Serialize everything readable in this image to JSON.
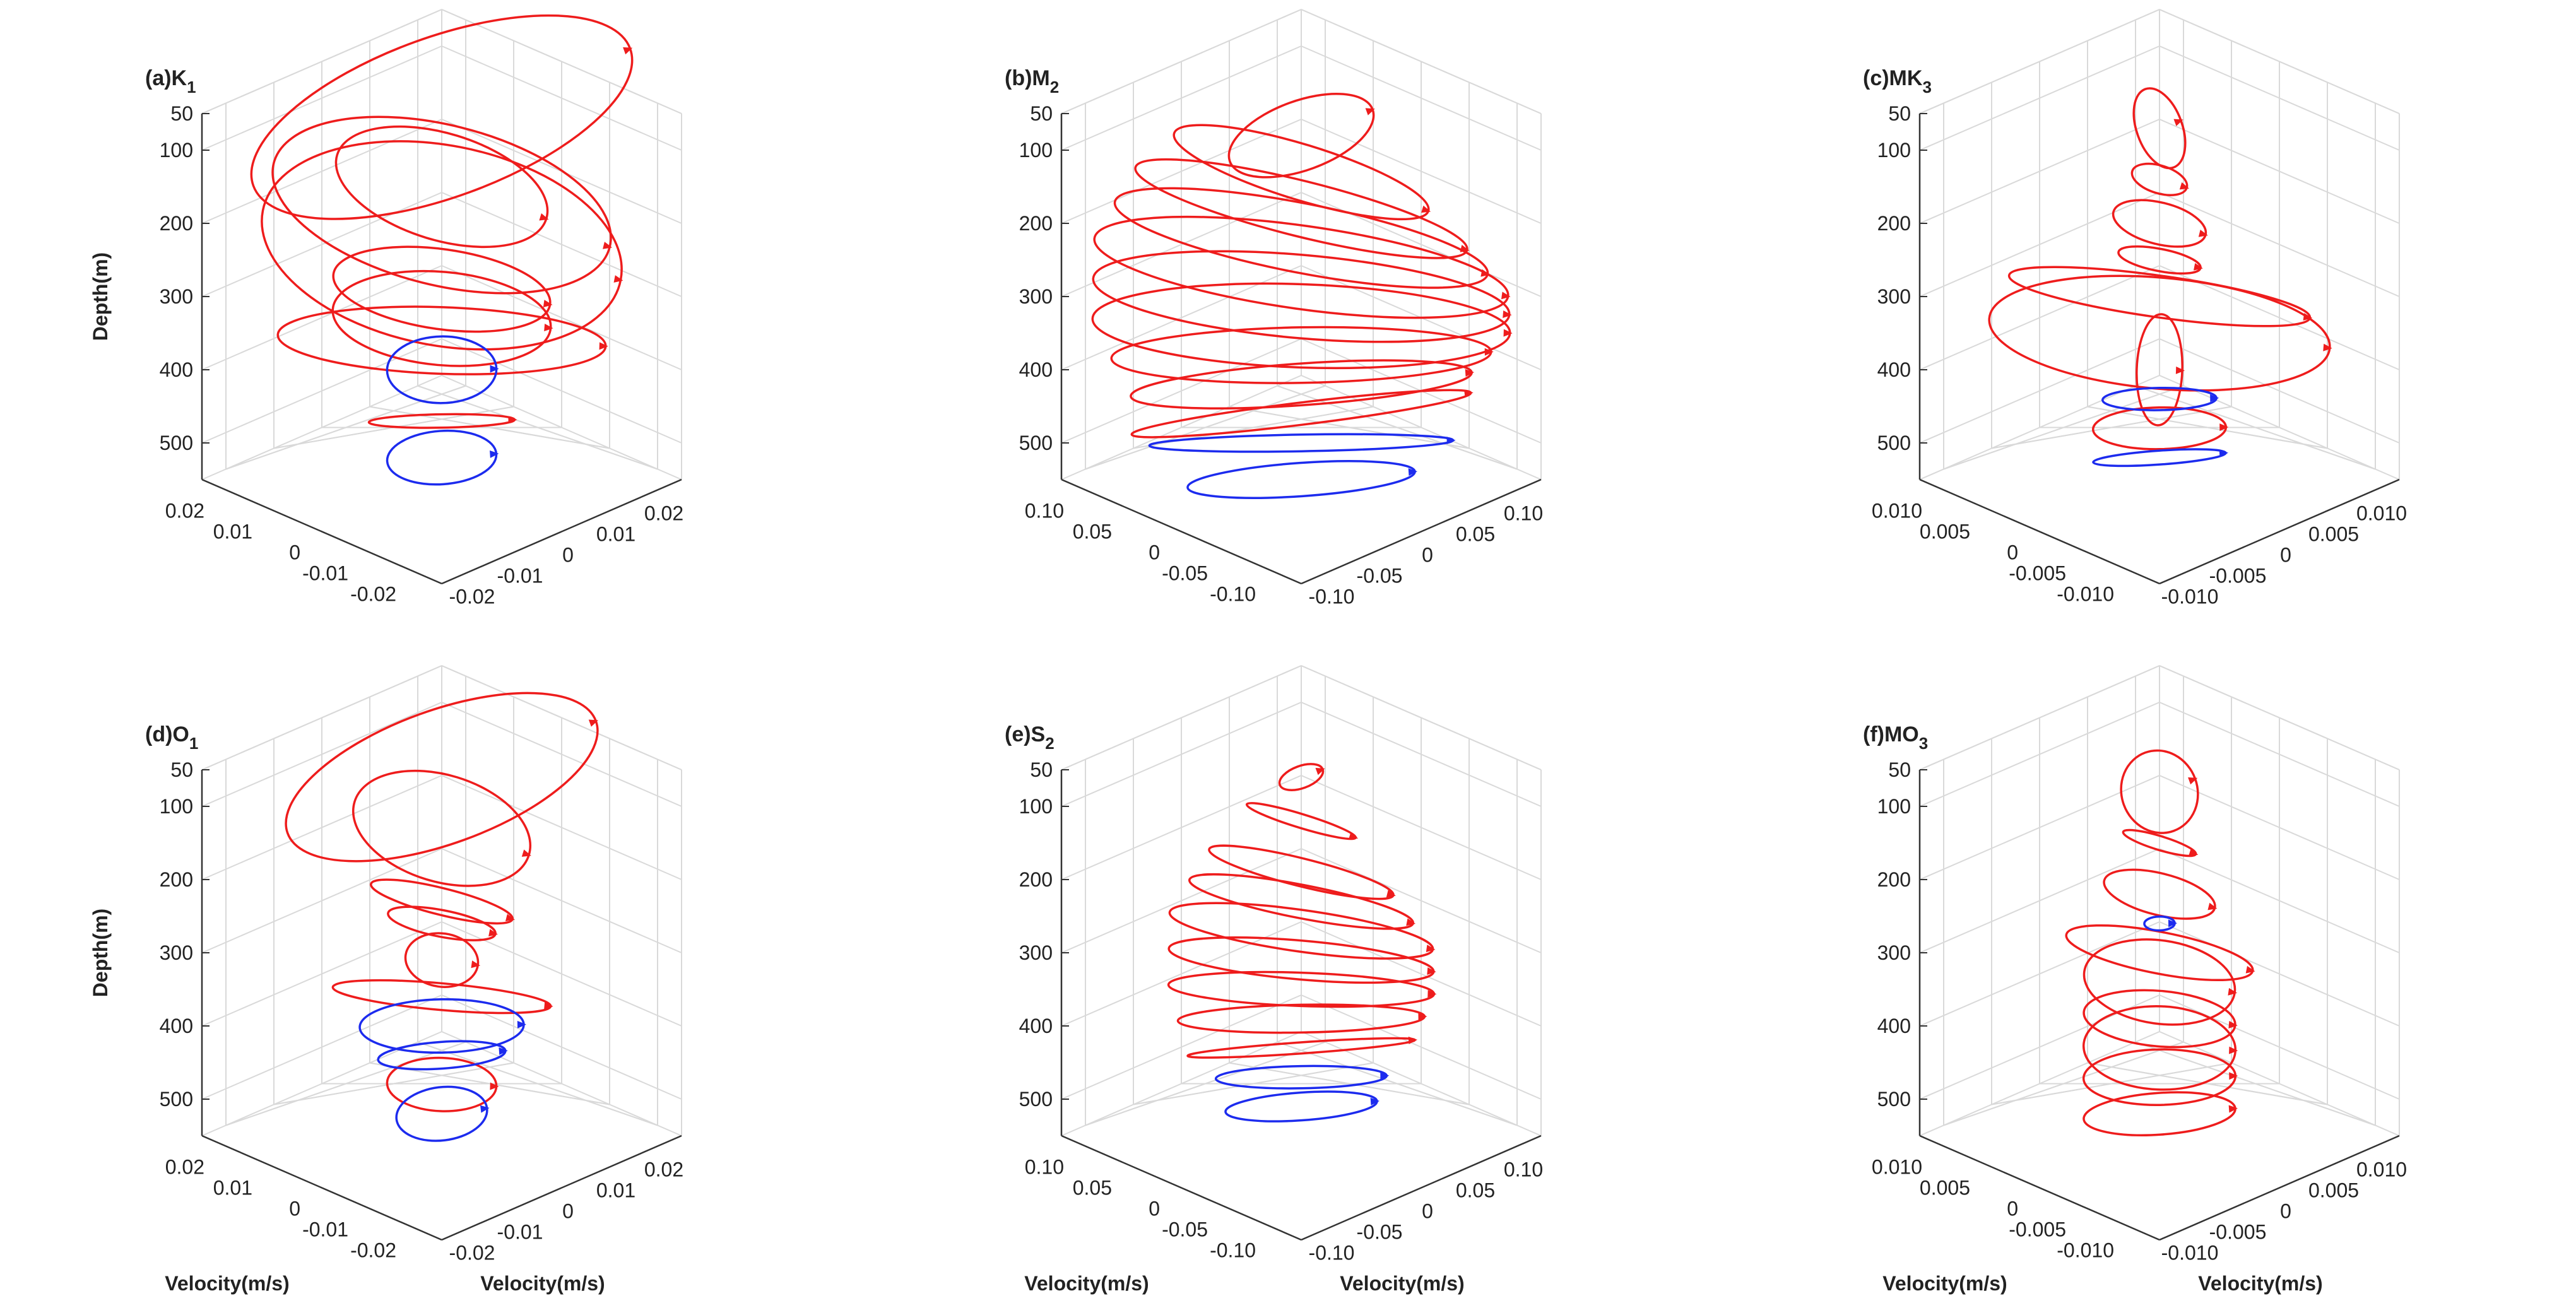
{
  "figure": {
    "y_axis_label": "Depth(m)",
    "x_axis_label": "Velocity(m/s)",
    "line_colors": {
      "upper": "#ee1c1c",
      "lower": "#1c2bee"
    },
    "grid_color": "#d9d9d9",
    "axis_color": "#333333"
  },
  "chart_data": [
    {
      "type": "line",
      "title": "(a)K",
      "subscript": "1",
      "zlabel": "Depth(m)",
      "zticks": [
        "50",
        "100",
        "200",
        "300",
        "400",
        "500"
      ],
      "xticks": [
        "0.02",
        "0.01",
        "0",
        "-0.01",
        "-0.02"
      ],
      "yticks": [
        "-0.02",
        "-0.01",
        "0",
        "0.01",
        "0.02"
      ],
      "xlim": [
        -0.025,
        0.025
      ],
      "ylim": [
        -0.025,
        0.025
      ],
      "zlim": [
        50,
        550
      ],
      "series": [
        {
          "name": "upper",
          "color": "red",
          "ellipses": [
            {
              "depth": 55,
              "u": 0.022,
              "v": 0.012
            },
            {
              "depth": 150,
              "u": 0.012,
              "v": 0.008
            },
            {
              "depth": 175,
              "u": 0.019,
              "v": 0.012
            },
            {
              "depth": 230,
              "u": 0.02,
              "v": 0.015
            },
            {
              "depth": 290,
              "u": 0.012,
              "v": 0.006
            },
            {
              "depth": 330,
              "u": 0.012,
              "v": 0.007
            },
            {
              "depth": 360,
              "u": 0.018,
              "v": 0.005
            },
            {
              "depth": 470,
              "u": 0.008,
              "v": 0.001
            }
          ]
        },
        {
          "name": "lower",
          "color": "blue",
          "ellipses": [
            {
              "depth": 400,
              "u": 0.006,
              "v": 0.005
            },
            {
              "depth": 520,
              "u": 0.006,
              "v": 0.004
            }
          ]
        }
      ]
    },
    {
      "type": "line",
      "title": "(b)M",
      "subscript": "2",
      "zlabel": "",
      "zticks": [
        "50",
        "100",
        "200",
        "300",
        "400",
        "500"
      ],
      "xticks": [
        "0.10",
        "0.05",
        "0",
        "-0.05",
        "-0.10"
      ],
      "yticks": [
        "-0.10",
        "-0.05",
        "0",
        "0.05",
        "0.10"
      ],
      "xlim": [
        -0.12,
        0.12
      ],
      "ylim": [
        -0.12,
        0.12
      ],
      "zlim": [
        50,
        550
      ],
      "series": [
        {
          "name": "upper",
          "color": "red",
          "ellipses": [
            {
              "depth": 80,
              "u": 0.04,
              "v": 0.025
            },
            {
              "depth": 130,
              "u": 0.07,
              "v": 0.02
            },
            {
              "depth": 180,
              "u": 0.09,
              "v": 0.02
            },
            {
              "depth": 220,
              "u": 0.1,
              "v": 0.025
            },
            {
              "depth": 260,
              "u": 0.11,
              "v": 0.03
            },
            {
              "depth": 300,
              "u": 0.11,
              "v": 0.03
            },
            {
              "depth": 340,
              "u": 0.11,
              "v": 0.03
            },
            {
              "depth": 380,
              "u": 0.1,
              "v": 0.02
            },
            {
              "depth": 420,
              "u": 0.09,
              "v": 0.015
            },
            {
              "depth": 460,
              "u": 0.09,
              "v": 0.008
            }
          ]
        },
        {
          "name": "lower",
          "color": "blue",
          "ellipses": [
            {
              "depth": 500,
              "u": 0.08,
              "v": 0.006
            },
            {
              "depth": 550,
              "u": 0.06,
              "v": 0.012
            }
          ]
        }
      ]
    },
    {
      "type": "line",
      "title": "(c)MK",
      "subscript": "3",
      "zlabel": "",
      "zticks": [
        "50",
        "100",
        "200",
        "300",
        "400",
        "500"
      ],
      "xticks": [
        "0.010",
        "0.005",
        "0",
        "-0.005",
        "-0.010"
      ],
      "yticks": [
        "-0.010",
        "-0.005",
        "0",
        "0.005",
        "0.010"
      ],
      "xlim": [
        -0.012,
        0.012
      ],
      "ylim": [
        -0.012,
        0.012
      ],
      "zlim": [
        50,
        550
      ],
      "series": [
        {
          "name": "upper",
          "color": "red",
          "ellipses": [
            {
              "depth": 70,
              "u": 0.0012,
              "v": 0.003
            },
            {
              "depth": 140,
              "u": 0.0015,
              "v": 0.001
            },
            {
              "depth": 200,
              "u": 0.0025,
              "v": 0.0015
            },
            {
              "depth": 250,
              "u": 0.0022,
              "v": 0.0008
            },
            {
              "depth": 300,
              "u": 0.008,
              "v": 0.0015
            },
            {
              "depth": 350,
              "u": 0.009,
              "v": 0.004
            },
            {
              "depth": 400,
              "u": 0.0012,
              "v": 0.004
            },
            {
              "depth": 480,
              "u": 0.0035,
              "v": 0.0015
            }
          ]
        },
        {
          "name": "lower",
          "color": "blue",
          "ellipses": [
            {
              "depth": 440,
              "u": 0.003,
              "v": 0.0008
            },
            {
              "depth": 520,
              "u": 0.0035,
              "v": 0.0005
            }
          ]
        }
      ]
    },
    {
      "type": "line",
      "title": "(d)O",
      "subscript": "1",
      "zlabel": "Depth(m)",
      "xlabel": "Velocity(m/s)",
      "ylabel": "Velocity(m/s)",
      "zticks": [
        "50",
        "100",
        "200",
        "300",
        "400",
        "500"
      ],
      "xticks": [
        "0.02",
        "0.01",
        "0",
        "-0.01",
        "-0.02"
      ],
      "yticks": [
        "-0.02",
        "-0.01",
        "0",
        "0.01",
        "0.02"
      ],
      "xlim": [
        -0.025,
        0.025
      ],
      "ylim": [
        -0.025,
        0.025
      ],
      "zlim": [
        50,
        550
      ],
      "series": [
        {
          "name": "upper",
          "color": "red",
          "ellipses": [
            {
              "depth": 60,
              "u": 0.018,
              "v": 0.01
            },
            {
              "depth": 130,
              "u": 0.01,
              "v": 0.008
            },
            {
              "depth": 230,
              "u": 0.008,
              "v": 0.002
            },
            {
              "depth": 260,
              "u": 0.006,
              "v": 0.002
            },
            {
              "depth": 310,
              "u": 0.004,
              "v": 0.004
            },
            {
              "depth": 360,
              "u": 0.012,
              "v": 0.002
            },
            {
              "depth": 480,
              "u": 0.006,
              "v": 0.004
            }
          ]
        },
        {
          "name": "lower",
          "color": "blue",
          "ellipses": [
            {
              "depth": 400,
              "u": 0.009,
              "v": 0.004
            },
            {
              "depth": 440,
              "u": 0.007,
              "v": 0.002
            },
            {
              "depth": 520,
              "u": 0.005,
              "v": 0.004
            }
          ]
        }
      ]
    },
    {
      "type": "line",
      "title": "(e)S",
      "subscript": "2",
      "zlabel": "",
      "xlabel": "Velocity(m/s)",
      "ylabel": "Velocity(m/s)",
      "zticks": [
        "50",
        "100",
        "200",
        "300",
        "400",
        "500"
      ],
      "xticks": [
        "0.10",
        "0.05",
        "0",
        "-0.05",
        "-0.10"
      ],
      "yticks": [
        "-0.10",
        "-0.05",
        "0",
        "0.05",
        "0.10"
      ],
      "xlim": [
        -0.12,
        0.12
      ],
      "ylim": [
        -0.12,
        0.12
      ],
      "zlim": [
        50,
        550
      ],
      "series": [
        {
          "name": "upper",
          "color": "red",
          "ellipses": [
            {
              "depth": 60,
              "u": 0.012,
              "v": 0.008
            },
            {
              "depth": 120,
              "u": 0.03,
              "v": 0.005
            },
            {
              "depth": 190,
              "u": 0.05,
              "v": 0.01
            },
            {
              "depth": 230,
              "u": 0.06,
              "v": 0.012
            },
            {
              "depth": 270,
              "u": 0.07,
              "v": 0.015
            },
            {
              "depth": 310,
              "u": 0.07,
              "v": 0.014
            },
            {
              "depth": 350,
              "u": 0.07,
              "v": 0.012
            },
            {
              "depth": 390,
              "u": 0.065,
              "v": 0.01
            },
            {
              "depth": 430,
              "u": 0.06,
              "v": 0.004
            }
          ]
        },
        {
          "name": "lower",
          "color": "blue",
          "ellipses": [
            {
              "depth": 470,
              "u": 0.045,
              "v": 0.008
            },
            {
              "depth": 510,
              "u": 0.04,
              "v": 0.01
            }
          ]
        }
      ]
    },
    {
      "type": "line",
      "title": "(f)MO",
      "subscript": "3",
      "zlabel": "",
      "xlabel": "Velocity(m/s)",
      "ylabel": "Velocity(m/s)",
      "zticks": [
        "50",
        "100",
        "200",
        "300",
        "400",
        "500"
      ],
      "xticks": [
        "0.010",
        "0.005",
        "0",
        "-0.005",
        "-0.010"
      ],
      "yticks": [
        "-0.010",
        "-0.005",
        "0",
        "0.005",
        "0.010"
      ],
      "xlim": [
        -0.012,
        0.012
      ],
      "ylim": [
        -0.012,
        0.012
      ],
      "zlim": [
        50,
        550
      ],
      "series": [
        {
          "name": "upper",
          "color": "red",
          "ellipses": [
            {
              "depth": 80,
              "u": 0.002,
              "v": 0.003
            },
            {
              "depth": 150,
              "u": 0.002,
              "v": 0.0005
            },
            {
              "depth": 220,
              "u": 0.003,
              "v": 0.0015
            },
            {
              "depth": 300,
              "u": 0.005,
              "v": 0.0015
            },
            {
              "depth": 340,
              "u": 0.004,
              "v": 0.003
            },
            {
              "depth": 390,
              "u": 0.004,
              "v": 0.002
            },
            {
              "depth": 430,
              "u": 0.004,
              "v": 0.003
            },
            {
              "depth": 470,
              "u": 0.004,
              "v": 0.002
            },
            {
              "depth": 520,
              "u": 0.004,
              "v": 0.0015
            }
          ]
        },
        {
          "name": "lower",
          "color": "blue",
          "ellipses": [
            {
              "depth": 260,
              "u": 0.0008,
              "v": 0.0005
            }
          ]
        }
      ]
    }
  ]
}
